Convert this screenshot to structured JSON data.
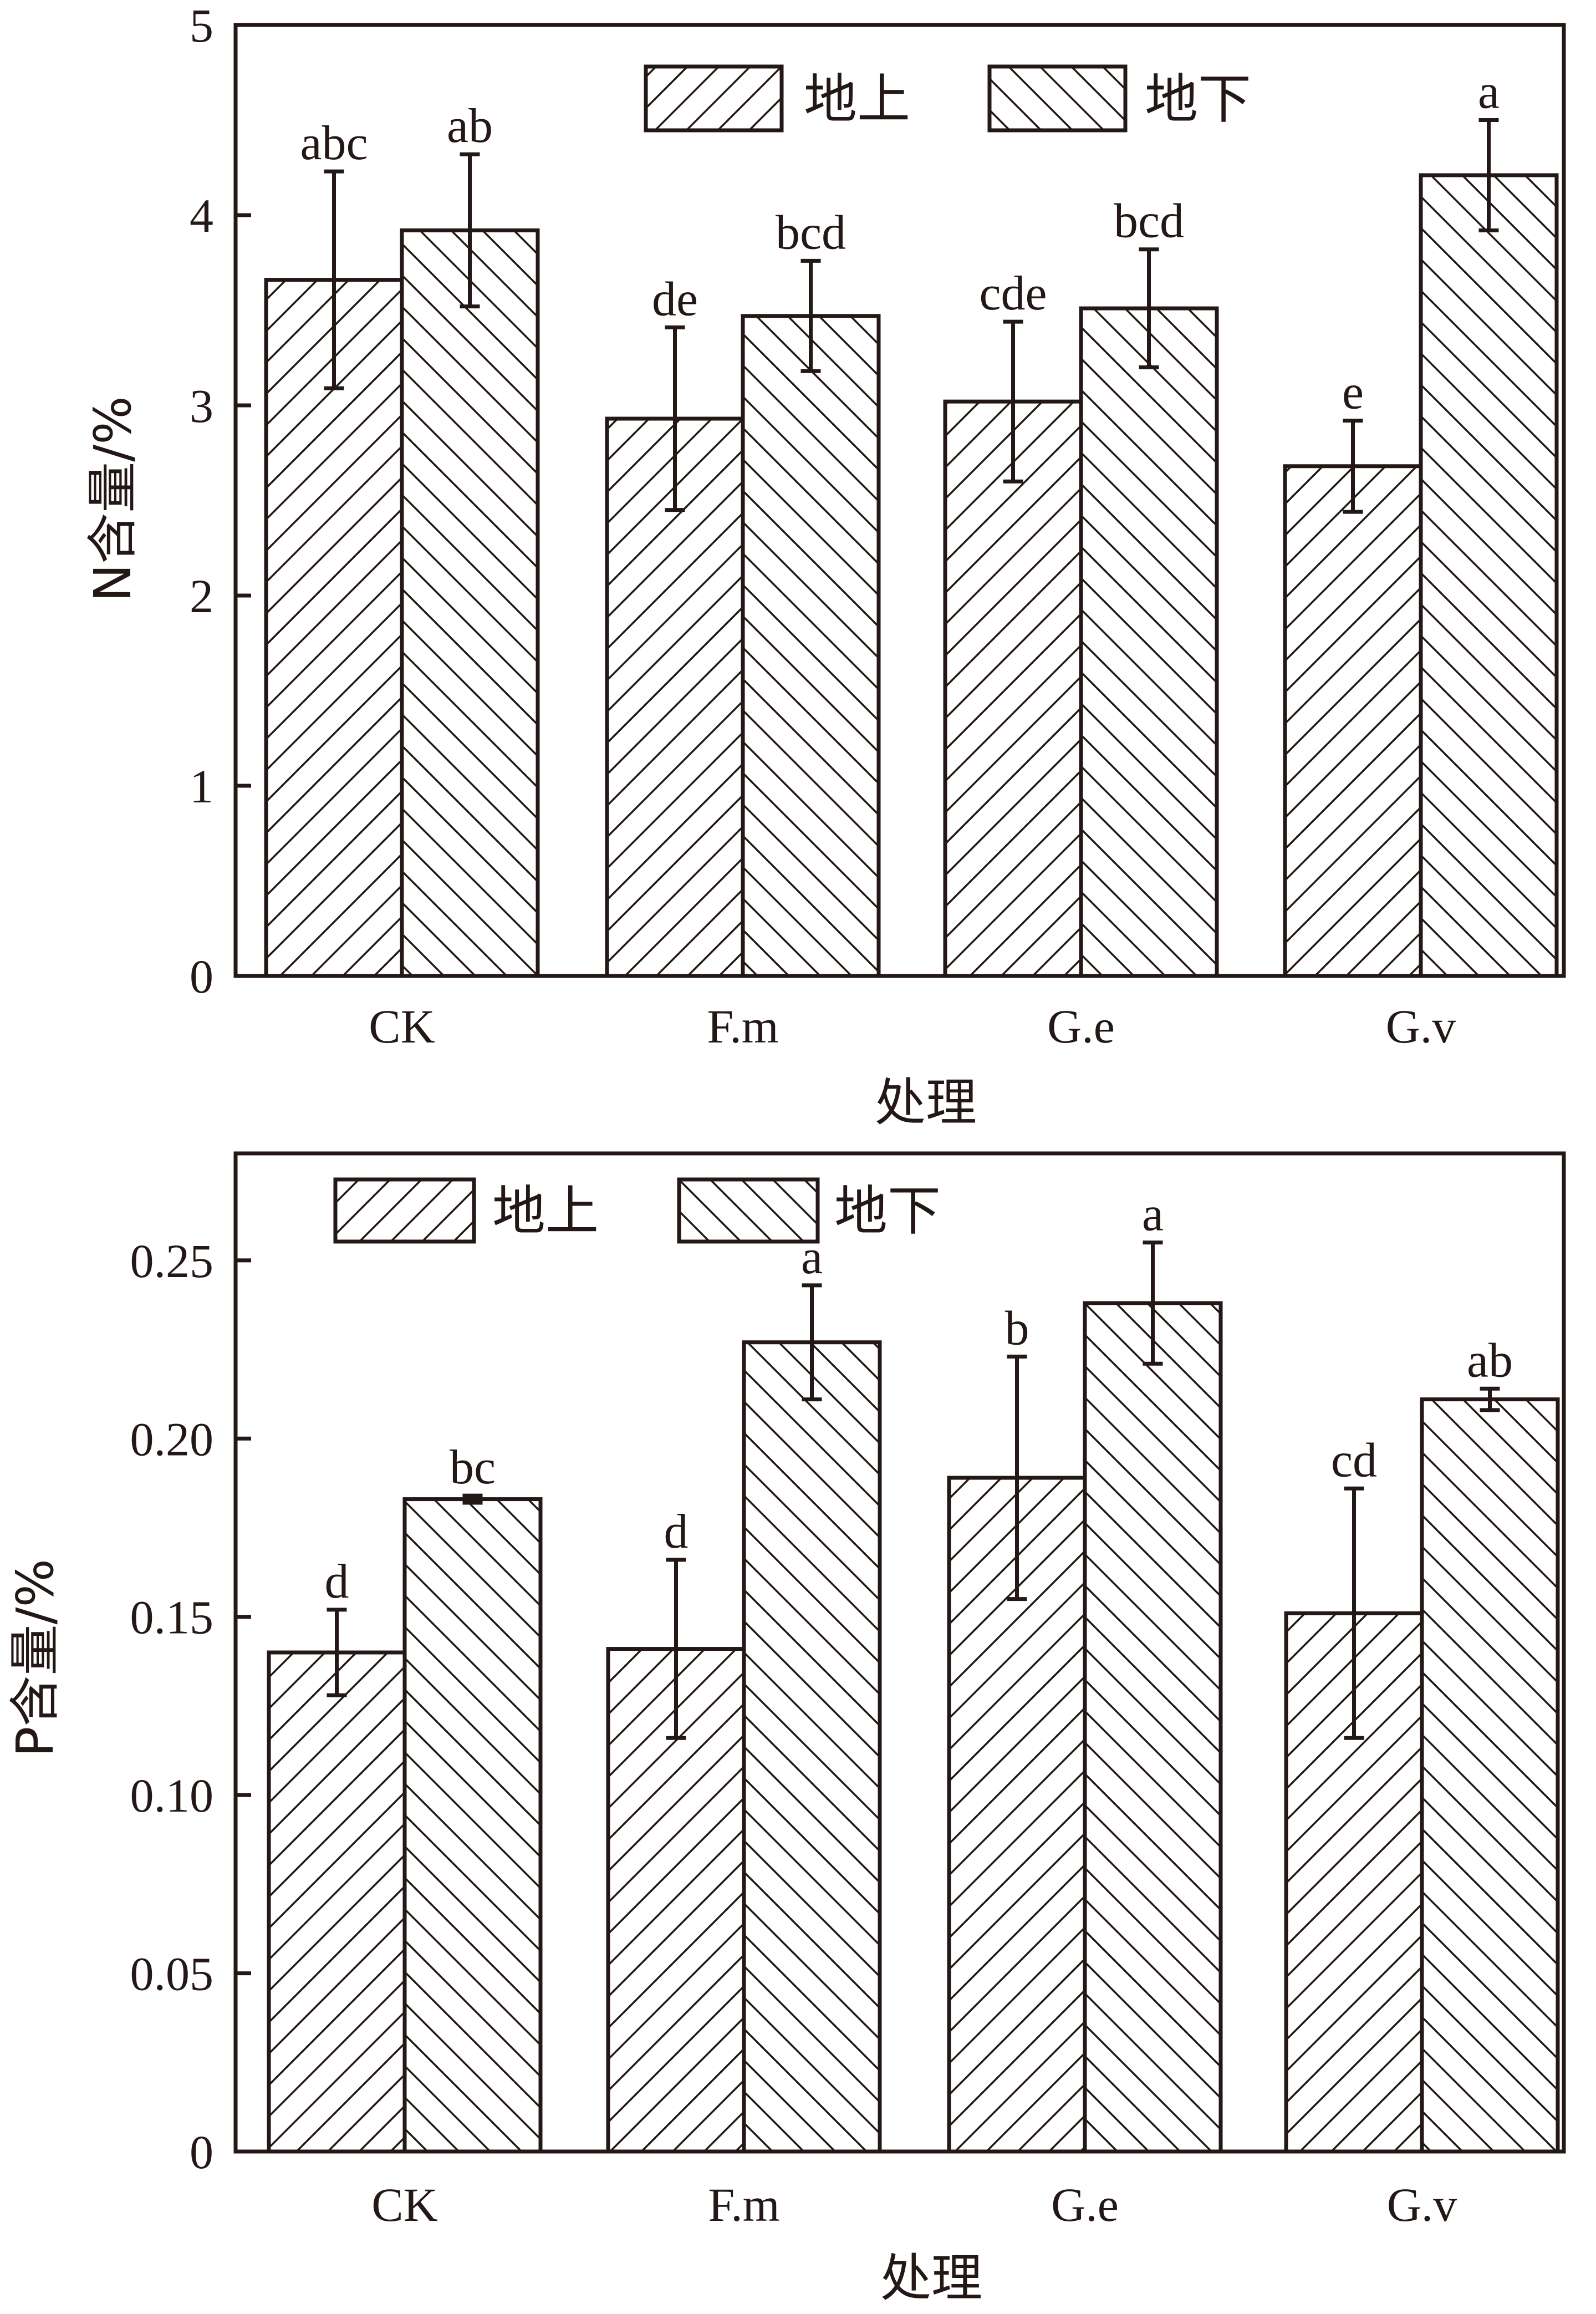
{
  "colors": {
    "ink": "#231815",
    "background": "#ffffff"
  },
  "chart_data": [
    {
      "type": "bar",
      "categories": [
        "CK",
        "F.m",
        "G.e",
        "G.v"
      ],
      "series": [
        {
          "name": "地上",
          "pattern": "forward-hatch",
          "values": [
            3.66,
            2.93,
            3.02,
            2.68
          ],
          "errors": [
            0.57,
            0.48,
            0.42,
            0.24
          ],
          "labels": [
            "abc",
            "de",
            "cde",
            "e"
          ]
        },
        {
          "name": "地下",
          "pattern": "back-hatch",
          "values": [
            3.92,
            3.47,
            3.51,
            4.21
          ],
          "errors": [
            0.4,
            0.29,
            0.31,
            0.29
          ],
          "labels": [
            "ab",
            "bcd",
            "bcd",
            "a"
          ]
        }
      ],
      "xlabel": "处理",
      "ylabel": "N含量/%",
      "ylim": [
        0,
        5
      ],
      "yticks": [
        "0",
        "1",
        "2",
        "3",
        "4",
        "5"
      ],
      "legend_position": "top-center",
      "grid": false
    },
    {
      "type": "bar",
      "categories": [
        "CK",
        "F.m",
        "G.e",
        "G.v"
      ],
      "series": [
        {
          "name": "地上",
          "pattern": "forward-hatch",
          "values": [
            0.14,
            0.141,
            0.189,
            0.151
          ],
          "errors": [
            0.012,
            0.025,
            0.034,
            0.035
          ],
          "labels": [
            "d",
            "d",
            "b",
            "cd"
          ]
        },
        {
          "name": "地下",
          "pattern": "back-hatch",
          "values": [
            0.183,
            0.227,
            0.238,
            0.211
          ],
          "errors": [
            0.001,
            0.016,
            0.017,
            0.003
          ],
          "labels": [
            "bc",
            "a",
            "a",
            "ab"
          ]
        }
      ],
      "xlabel": "处理",
      "ylabel": "P含量/%",
      "ylim": [
        0,
        0.28
      ],
      "yticks": [
        "0",
        "0.05",
        "0.10",
        "0.15",
        "0.20",
        "0.25"
      ],
      "legend_position": "top-left",
      "grid": false
    }
  ]
}
